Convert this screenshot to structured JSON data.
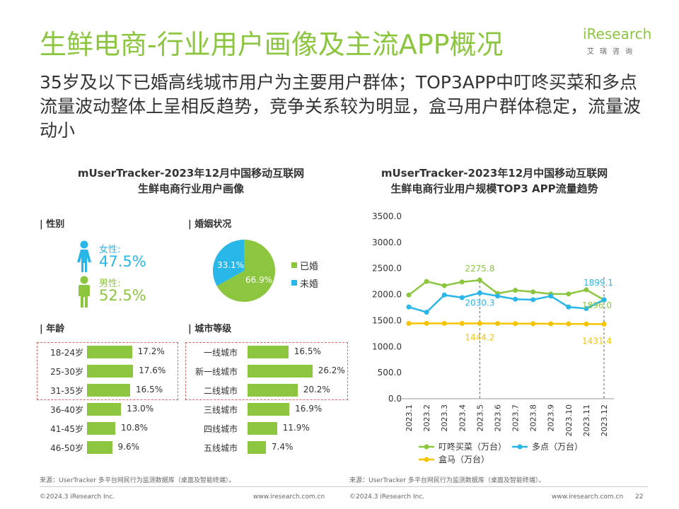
{
  "header": {
    "title": "生鲜电商-行业用户画像及主流APP概况",
    "subtitle": "35岁及以下已婚高线城市用户为主要用户群体；TOP3APP中叮咚买菜和多点流量波动整体上呈相反趋势，竞争关系较为明显，盒马用户群体稳定，流量波动小",
    "logo_text": "iResearch",
    "logo_sub": "艾瑞咨询"
  },
  "left_panel": {
    "title_line1": "mUserTracker-2023年12月中国移动互联网",
    "title_line2": "生鲜电商行业用户画像",
    "gender": {
      "label": "| 性别",
      "female_label": "女性:",
      "female_value": "47.5%",
      "male_label": "男性:",
      "male_value": "52.5%",
      "female_color": "#29b6e8",
      "male_color": "#8cc63f"
    },
    "marital": {
      "label": "| 婚姻状况",
      "married_label": "已婚",
      "married_value": 66.9,
      "married_text": "66.9%",
      "unmarried_label": "未婚",
      "unmarried_value": 33.1,
      "unmarried_text": "33.1%"
    },
    "age": {
      "label": "| 年龄",
      "rows": [
        {
          "label": "18-24岁",
          "value": 17.2,
          "text": "17.2%"
        },
        {
          "label": "25-30岁",
          "value": 17.6,
          "text": "17.6%"
        },
        {
          "label": "31-35岁",
          "value": 16.5,
          "text": "16.5%"
        },
        {
          "label": "36-40岁",
          "value": 13.0,
          "text": "13.0%"
        },
        {
          "label": "41-45岁",
          "value": 10.8,
          "text": "10.8%"
        },
        {
          "label": "46-50岁",
          "value": 9.6,
          "text": "9.6%"
        }
      ]
    },
    "city": {
      "label": "| 城市等级",
      "rows": [
        {
          "label": "一线城市",
          "value": 16.5,
          "text": "16.5%"
        },
        {
          "label": "新一线城市",
          "value": 26.2,
          "text": "26.2%"
        },
        {
          "label": "二线城市",
          "value": 20.2,
          "text": "20.2%"
        },
        {
          "label": "三线城市",
          "value": 16.9,
          "text": "16.9%"
        },
        {
          "label": "四线城市",
          "value": 11.9,
          "text": "11.9%"
        },
        {
          "label": "五线城市",
          "value": 7.4,
          "text": "7.4%"
        }
      ]
    },
    "source": "来源：UserTracker 多平台网民行为监测数据库（桌面及智能终端）。"
  },
  "chart_data": {
    "type": "line",
    "title": "mUserTracker-2023年12月中国移动互联网生鲜电商行业用户规模TOP3 APP流量趋势",
    "title_line1": "mUserTracker-2023年12月中国移动互联网",
    "title_line2": "生鲜电商行业用户规模TOP3 APP流量趋势",
    "categories": [
      "2023.1",
      "2023.2",
      "2023.3",
      "2023.4",
      "2023.5",
      "2023.6",
      "2023.7",
      "2023.8",
      "2023.9",
      "2023.10",
      "2023.11",
      "2023.12"
    ],
    "ylim": [
      0,
      3500
    ],
    "yticks": [
      "0.0",
      "500.0",
      "1000.0",
      "1500.0",
      "2000.0",
      "2500.0",
      "3000.0",
      "3500.0"
    ],
    "grid": false,
    "legend_position": "bottom",
    "series": [
      {
        "name": "叮咚买菜（万台）",
        "color": "#8cc63f",
        "values": [
          1990,
          2250,
          2170,
          2240,
          2275.8,
          2020,
          2080,
          2050,
          2010,
          2010,
          2090,
          1896.0
        ]
      },
      {
        "name": "多点（万台）",
        "color": "#29b6e8",
        "values": [
          1760,
          1660,
          1990,
          1940,
          2030.3,
          1970,
          1910,
          1900,
          1970,
          1760,
          1730,
          1899.1
        ]
      },
      {
        "name": "盒马（万台）",
        "color": "#f5c400",
        "values": [
          1445,
          1446,
          1445,
          1444,
          1444.2,
          1443,
          1442,
          1440,
          1438,
          1436,
          1434,
          1431.4
        ]
      }
    ],
    "annotations": [
      {
        "text": "2275.8",
        "series": 0,
        "index": 4
      },
      {
        "text": "2030.3",
        "series": 1,
        "index": 4
      },
      {
        "text": "1444.2",
        "series": 2,
        "index": 4
      },
      {
        "text": "1899.1",
        "series": 1,
        "index": 11
      },
      {
        "text": "1896.0",
        "series": 0,
        "index": 11
      },
      {
        "text": "1431.4",
        "series": 2,
        "index": 11
      }
    ],
    "source": "来源：UserTracker 多平台网民行为监测数据库（桌面及智能终端）。"
  },
  "footer": {
    "left_copyright": "©2024.3 iResearch Inc.",
    "left_url": "www.iresearch.com.cn",
    "right_copyright": "©2024.3 iResearch Inc.",
    "right_url": "www.iresearch.com.cn",
    "page_number": "22"
  }
}
